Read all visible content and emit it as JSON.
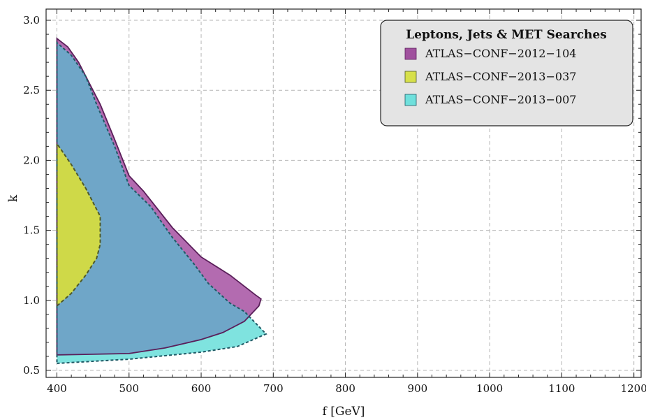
{
  "chart_data": {
    "type": "area",
    "title": "",
    "xlabel": "f [GeV]",
    "ylabel": "k",
    "xlim": [
      385,
      1210
    ],
    "ylim": [
      0.45,
      3.08
    ],
    "x_ticks": [
      400,
      500,
      600,
      700,
      800,
      900,
      1000,
      1100,
      1200
    ],
    "x_tick_labels": [
      "400",
      "500",
      "600",
      "700",
      "800",
      "900",
      "1000",
      "1100",
      "1200"
    ],
    "y_ticks": [
      0.5,
      1.0,
      1.5,
      2.0,
      2.5,
      3.0
    ],
    "y_tick_labels": [
      "0.5",
      "1.0",
      "1.5",
      "2.0",
      "2.5",
      "3.0"
    ],
    "grid": true,
    "legend": {
      "title": "Leptons, Jets & MET Searches",
      "placement": "top-right"
    },
    "series": [
      {
        "name": "ATLAS−CONF−2012−104",
        "color": "#a0519e",
        "fill": "#b36bb0",
        "stroke": "#5a1f5a",
        "dash": false,
        "points": [
          [
            400,
            0.61
          ],
          [
            500,
            0.62
          ],
          [
            550,
            0.66
          ],
          [
            600,
            0.72
          ],
          [
            630,
            0.77
          ],
          [
            660,
            0.85
          ],
          [
            680,
            0.96
          ],
          [
            683,
            1.01
          ],
          [
            675,
            1.04
          ],
          [
            640,
            1.18
          ],
          [
            600,
            1.31
          ],
          [
            560,
            1.52
          ],
          [
            520,
            1.78
          ],
          [
            500,
            1.89
          ],
          [
            480,
            2.15
          ],
          [
            460,
            2.4
          ],
          [
            450,
            2.5
          ],
          [
            430,
            2.7
          ],
          [
            415,
            2.81
          ],
          [
            400,
            2.87
          ]
        ]
      },
      {
        "name": "ATLAS−CONF−2013−037",
        "color": "#d7e04a",
        "fill": "#cfd948",
        "stroke": "#4f5a2a",
        "dash": true,
        "points": [
          [
            400,
            0.96
          ],
          [
            420,
            1.05
          ],
          [
            440,
            1.18
          ],
          [
            455,
            1.3
          ],
          [
            460,
            1.4
          ],
          [
            460,
            1.6
          ],
          [
            440,
            1.8
          ],
          [
            420,
            1.97
          ],
          [
            400,
            2.12
          ]
        ]
      },
      {
        "name": "ATLAS−CONF−2013−007",
        "color": "#6fe0dc",
        "fill": "#7fe3df",
        "stroke": "#1f5a66",
        "dash": true,
        "points": [
          [
            400,
            0.55
          ],
          [
            500,
            0.58
          ],
          [
            600,
            0.63
          ],
          [
            650,
            0.67
          ],
          [
            690,
            0.76
          ],
          [
            660,
            0.92
          ],
          [
            640,
            0.98
          ],
          [
            610,
            1.12
          ],
          [
            590,
            1.26
          ],
          [
            560,
            1.45
          ],
          [
            530,
            1.67
          ],
          [
            500,
            1.82
          ],
          [
            480,
            2.1
          ],
          [
            455,
            2.4
          ],
          [
            440,
            2.6
          ],
          [
            420,
            2.75
          ],
          [
            400,
            2.84
          ]
        ]
      }
    ]
  }
}
